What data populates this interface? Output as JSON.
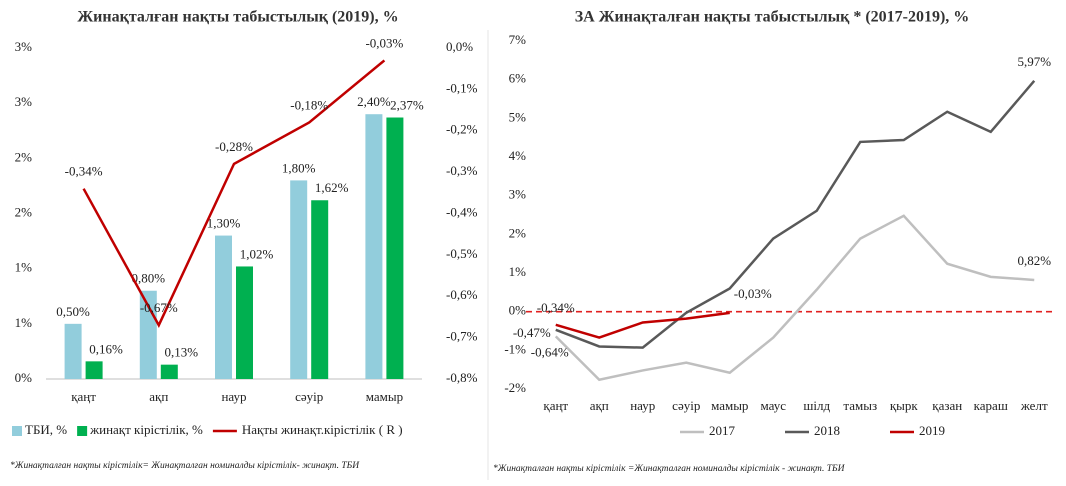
{
  "chart_data": [
    {
      "type": "combo",
      "title": "Жинақталған нақты табыстылық (2019), %",
      "categories": [
        "қаңт",
        "ақп",
        "наур",
        "сәуір",
        "мамыр"
      ],
      "series": [
        {
          "name": "ТБИ, %",
          "type": "bar",
          "color": "#92cddc",
          "values": [
            0.5,
            0.8,
            1.3,
            1.8,
            2.4
          ],
          "value_labels": [
            "0,50%",
            "0,80%",
            "1,30%",
            "1,80%",
            "2,40%"
          ]
        },
        {
          "name": "жинақт кірістілік, %",
          "type": "bar",
          "color": "#00b050",
          "values": [
            0.16,
            0.13,
            1.02,
            1.62,
            2.37
          ],
          "value_labels": [
            "0,16%",
            "0,13%",
            "1,02%",
            "1,62%",
            "2,37%"
          ]
        },
        {
          "name": "Нақты жинақт.кірістілік ( R )",
          "type": "line",
          "axis": "y2",
          "color": "#c00000",
          "values": [
            -0.34,
            -0.67,
            -0.28,
            -0.18,
            -0.03
          ],
          "value_labels": [
            "-0,34%",
            "-0,67%",
            "-0,28%",
            "-0,18%",
            "-0,03%"
          ]
        }
      ],
      "ylim": [
        0,
        3
      ],
      "yticks": [
        {
          "value": 0,
          "label": "0%"
        },
        {
          "value": 0.5,
          "label": "1%"
        },
        {
          "value": 1,
          "label": "1%"
        },
        {
          "value": 1.5,
          "label": "2%"
        },
        {
          "value": 2,
          "label": "2%"
        },
        {
          "value": 2.5,
          "label": "3%"
        },
        {
          "value": 3,
          "label": "3%"
        }
      ],
      "y2lim": [
        -0.8,
        0
      ],
      "y2ticks": [
        {
          "value": 0,
          "label": "0,0%"
        },
        {
          "value": -0.1,
          "label": "-0,1%"
        },
        {
          "value": -0.2,
          "label": "-0,2%"
        },
        {
          "value": -0.3,
          "label": "-0,3%"
        },
        {
          "value": -0.4,
          "label": "-0,4%"
        },
        {
          "value": -0.5,
          "label": "-0,5%"
        },
        {
          "value": -0.6,
          "label": "-0,6%"
        },
        {
          "value": -0.7,
          "label": "-0,7%"
        },
        {
          "value": -0.8,
          "label": "-0,8%"
        }
      ],
      "grid": false,
      "legend": "bottom",
      "footnote": "*Жинақталған нақты кірістілік= Жинақталған  номиналды кірістілік- жинақт. ТБИ"
    },
    {
      "type": "line",
      "title": "ЗА Жинақталған нақты табыстылық * (2017-2019), %",
      "categories": [
        "қаңт",
        "ақп",
        "наур",
        "сәуір",
        "мамыр",
        "маус",
        "шілд",
        "тамыз",
        "қырк",
        "қазан",
        "караш",
        "желт"
      ],
      "series": [
        {
          "name": "2017",
          "color": "#bfbfbf",
          "values": [
            -0.64,
            -1.76,
            -1.52,
            -1.32,
            -1.58,
            -0.67,
            0.57,
            1.89,
            2.48,
            1.24,
            0.9,
            0.82
          ],
          "value_labels": [
            "-0,64%",
            null,
            null,
            null,
            null,
            null,
            null,
            null,
            null,
            null,
            null,
            "0,82%"
          ]
        },
        {
          "name": "2018",
          "color": "#595959",
          "values": [
            -0.47,
            -0.9,
            -0.93,
            -0.03,
            0.6,
            1.89,
            2.61,
            4.39,
            4.44,
            5.17,
            4.65,
            5.97
          ],
          "value_labels": [
            "-0,47%",
            null,
            null,
            null,
            null,
            null,
            null,
            null,
            null,
            null,
            null,
            "5,97%"
          ]
        },
        {
          "name": "2019",
          "color": "#c00000",
          "values": [
            -0.34,
            -0.67,
            -0.28,
            -0.18,
            -0.03,
            null,
            null,
            null,
            null,
            null,
            null,
            null
          ],
          "value_labels": [
            "-0,34%",
            null,
            null,
            null,
            "-0,03%",
            null,
            null,
            null,
            null,
            null,
            null,
            null
          ]
        }
      ],
      "ylim": [
        -2,
        7
      ],
      "yticks": [
        {
          "value": -2,
          "label": "-2%"
        },
        {
          "value": -1,
          "label": "-1%"
        },
        {
          "value": 0,
          "label": "0%"
        },
        {
          "value": 1,
          "label": "1%"
        },
        {
          "value": 2,
          "label": "2%"
        },
        {
          "value": 3,
          "label": "3%"
        },
        {
          "value": 4,
          "label": "4%"
        },
        {
          "value": 5,
          "label": "5%"
        },
        {
          "value": 6,
          "label": "6%"
        },
        {
          "value": 7,
          "label": "7%"
        }
      ],
      "reference_line": {
        "value": 0,
        "color": "#e02020"
      },
      "grid": false,
      "legend": "bottom",
      "footnote": "*Жинақталған нақты кірістілік =Жинақталған номиналды кірістілік - жинақт. ТБИ"
    }
  ]
}
